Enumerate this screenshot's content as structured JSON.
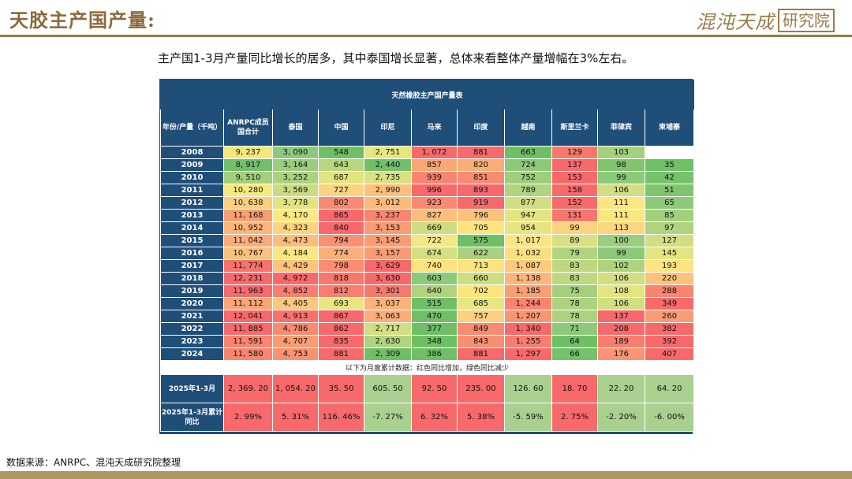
{
  "header": {
    "title": "天胶主产国产量:",
    "logo_main": "混沌天成",
    "logo_sub": "研究院"
  },
  "subtitle": "主产国1-3月产量同比增长的居多，其中泰国增长显著，总体来看整体产量增幅在3%左右。",
  "table": {
    "title": "天然橡胶主产国产量表",
    "corner_header": "年份/产量（千吨）",
    "columns": [
      "ANRPC成员国合计",
      "泰国",
      "中国",
      "印尼",
      "马来",
      "印度",
      "越南",
      "斯里兰卡",
      "菲律宾",
      "柬埔寨"
    ],
    "rows": [
      {
        "year": "2008",
        "cells": [
          {
            "v": "9, 237",
            "c": "#f5e77a"
          },
          {
            "v": "3, 090",
            "c": "#8dc97a"
          },
          {
            "v": "548",
            "c": "#6fbf67"
          },
          {
            "v": "2, 751",
            "c": "#e7e77e"
          },
          {
            "v": "1, 072",
            "c": "#f8696b"
          },
          {
            "v": "881",
            "c": "#f8696b"
          },
          {
            "v": "663",
            "c": "#6fbf67"
          },
          {
            "v": "129",
            "c": "#f8796c"
          },
          {
            "v": "103",
            "c": "#a4d07f"
          },
          {
            "v": "",
            "c": "#ffffff"
          }
        ]
      },
      {
        "year": "2009",
        "cells": [
          {
            "v": "8, 917",
            "c": "#70c06a"
          },
          {
            "v": "3, 164",
            "c": "#9acd7d"
          },
          {
            "v": "643",
            "c": "#b8d680"
          },
          {
            "v": "2, 440",
            "c": "#70c06a"
          },
          {
            "v": "857",
            "c": "#f9a775"
          },
          {
            "v": "820",
            "c": "#f9ae78"
          },
          {
            "v": "724",
            "c": "#8dc97a"
          },
          {
            "v": "137",
            "c": "#f8696b"
          },
          {
            "v": "98",
            "c": "#80c46e"
          },
          {
            "v": "35",
            "c": "#6fbf67"
          }
        ]
      },
      {
        "year": "2010",
        "cells": [
          {
            "v": "9, 510",
            "c": "#a3cf7e"
          },
          {
            "v": "3, 252",
            "c": "#abd27f"
          },
          {
            "v": "687",
            "c": "#e2e480"
          },
          {
            "v": "2, 735",
            "c": "#d8e081"
          },
          {
            "v": "939",
            "c": "#f98470"
          },
          {
            "v": "851",
            "c": "#f98b71"
          },
          {
            "v": "752",
            "c": "#9ecd7d"
          },
          {
            "v": "153",
            "c": "#f8696b"
          },
          {
            "v": "99",
            "c": "#8dc97a"
          },
          {
            "v": "42",
            "c": "#79c26d"
          }
        ]
      },
      {
        "year": "2011",
        "cells": [
          {
            "v": "10, 280",
            "c": "#f8e97d"
          },
          {
            "v": "3, 569",
            "c": "#c9dc81"
          },
          {
            "v": "727",
            "c": "#fbd37f"
          },
          {
            "v": "2, 990",
            "c": "#fdc07c"
          },
          {
            "v": "996",
            "c": "#f8696b"
          },
          {
            "v": "893",
            "c": "#f8696b"
          },
          {
            "v": "789",
            "c": "#b1d47f"
          },
          {
            "v": "158",
            "c": "#f8696b"
          },
          {
            "v": "106",
            "c": "#d1de81"
          },
          {
            "v": "51",
            "c": "#80c46e"
          }
        ]
      },
      {
        "year": "2012",
        "cells": [
          {
            "v": "10, 638",
            "c": "#fcce7e"
          },
          {
            "v": "3, 778",
            "c": "#e1e480"
          },
          {
            "v": "802",
            "c": "#f98a71"
          },
          {
            "v": "3, 012",
            "c": "#fcb97a"
          },
          {
            "v": "923",
            "c": "#f98a71"
          },
          {
            "v": "919",
            "c": "#f8696b"
          },
          {
            "v": "877",
            "c": "#d2de81"
          },
          {
            "v": "152",
            "c": "#f8696b"
          },
          {
            "v": "111",
            "c": "#fbe682"
          },
          {
            "v": "65",
            "c": "#8dc97a"
          }
        ]
      },
      {
        "year": "2013",
        "cells": [
          {
            "v": "11, 168",
            "c": "#f99d73"
          },
          {
            "v": "4, 170",
            "c": "#fbe882"
          },
          {
            "v": "865",
            "c": "#f8696b"
          },
          {
            "v": "3, 237",
            "c": "#f98470"
          },
          {
            "v": "827",
            "c": "#fcbf7b"
          },
          {
            "v": "796",
            "c": "#fcc27c"
          },
          {
            "v": "947",
            "c": "#e4e582"
          },
          {
            "v": "131",
            "c": "#f8766d"
          },
          {
            "v": "111",
            "c": "#fbe682"
          },
          {
            "v": "85",
            "c": "#a3cf7e"
          }
        ]
      },
      {
        "year": "2014",
        "cells": [
          {
            "v": "10, 952",
            "c": "#fcb57a"
          },
          {
            "v": "4, 323",
            "c": "#fdd47f"
          },
          {
            "v": "840",
            "c": "#f8696b"
          },
          {
            "v": "3, 153",
            "c": "#fb9b73"
          },
          {
            "v": "669",
            "c": "#cfdd81"
          },
          {
            "v": "705",
            "c": "#fde47f"
          },
          {
            "v": "954",
            "c": "#e6e582"
          },
          {
            "v": "99",
            "c": "#fbd27f"
          },
          {
            "v": "113",
            "c": "#fcd680"
          },
          {
            "v": "97",
            "c": "#b0d37f"
          }
        ]
      },
      {
        "year": "2015",
        "cells": [
          {
            "v": "11, 042",
            "c": "#fbac77"
          },
          {
            "v": "4, 473",
            "c": "#fcbd7b"
          },
          {
            "v": "794",
            "c": "#fa9072"
          },
          {
            "v": "3, 145",
            "c": "#fb9c73"
          },
          {
            "v": "722",
            "c": "#f2e881"
          },
          {
            "v": "575",
            "c": "#6fbf67"
          },
          {
            "v": "1, 017",
            "c": "#fbe482"
          },
          {
            "v": "89",
            "c": "#d8e081"
          },
          {
            "v": "100",
            "c": "#9acd7d"
          },
          {
            "v": "127",
            "c": "#d2de81"
          }
        ]
      },
      {
        "year": "2016",
        "cells": [
          {
            "v": "10, 767",
            "c": "#fcc27c"
          },
          {
            "v": "4, 184",
            "c": "#fbe682"
          },
          {
            "v": "774",
            "c": "#fbae78"
          },
          {
            "v": "3, 157",
            "c": "#fb9a73"
          },
          {
            "v": "674",
            "c": "#d4df81"
          },
          {
            "v": "622",
            "c": "#a8d27f"
          },
          {
            "v": "1, 032",
            "c": "#fbdf80"
          },
          {
            "v": "79",
            "c": "#b1d47f"
          },
          {
            "v": "99",
            "c": "#8dc97a"
          },
          {
            "v": "145",
            "c": "#e4e582"
          }
        ]
      },
      {
        "year": "2017",
        "cells": [
          {
            "v": "11, 774",
            "c": "#f8726c"
          },
          {
            "v": "4, 429",
            "c": "#fcc47c"
          },
          {
            "v": "798",
            "c": "#fa8c71"
          },
          {
            "v": "3, 629",
            "c": "#f8696b"
          },
          {
            "v": "740",
            "c": "#fbe37f"
          },
          {
            "v": "713",
            "c": "#fde27f"
          },
          {
            "v": "1, 087",
            "c": "#fcca7e"
          },
          {
            "v": "83",
            "c": "#bed880"
          },
          {
            "v": "102",
            "c": "#aed37f"
          },
          {
            "v": "193",
            "c": "#fde482"
          }
        ]
      },
      {
        "year": "2018",
        "cells": [
          {
            "v": "12, 231",
            "c": "#f8696b"
          },
          {
            "v": "4, 972",
            "c": "#f8696b"
          },
          {
            "v": "818",
            "c": "#f8786d"
          },
          {
            "v": "3, 630",
            "c": "#f8696b"
          },
          {
            "v": "603",
            "c": "#8dc97a"
          },
          {
            "v": "660",
            "c": "#cddd81"
          },
          {
            "v": "1, 138",
            "c": "#fcb57a"
          },
          {
            "v": "83",
            "c": "#bed880"
          },
          {
            "v": "106",
            "c": "#d1de81"
          },
          {
            "v": "220",
            "c": "#fcc27c"
          }
        ]
      },
      {
        "year": "2019",
        "cells": [
          {
            "v": "11, 963",
            "c": "#f8696b"
          },
          {
            "v": "4, 852",
            "c": "#f97e6f"
          },
          {
            "v": "812",
            "c": "#f97e6f"
          },
          {
            "v": "3, 301",
            "c": "#f8796c"
          },
          {
            "v": "640",
            "c": "#b0d37f"
          },
          {
            "v": "702",
            "c": "#fde47f"
          },
          {
            "v": "1, 185",
            "c": "#fa9f74"
          },
          {
            "v": "75",
            "c": "#a3cf7e"
          },
          {
            "v": "108",
            "c": "#e4e582"
          },
          {
            "v": "288",
            "c": "#f98470"
          }
        ]
      },
      {
        "year": "2020",
        "cells": [
          {
            "v": "11, 112",
            "c": "#fba577"
          },
          {
            "v": "4, 405",
            "c": "#fcc87d"
          },
          {
            "v": "693",
            "c": "#e8e682"
          },
          {
            "v": "3, 037",
            "c": "#fcb379"
          },
          {
            "v": "515",
            "c": "#6fbf67"
          },
          {
            "v": "685",
            "c": "#e7e682"
          },
          {
            "v": "1, 244",
            "c": "#f98470"
          },
          {
            "v": "78",
            "c": "#acd27f"
          },
          {
            "v": "106",
            "c": "#d1de81"
          },
          {
            "v": "349",
            "c": "#f8696b"
          }
        ]
      },
      {
        "year": "2021",
        "cells": [
          {
            "v": "12, 041",
            "c": "#f8696b"
          },
          {
            "v": "4, 913",
            "c": "#f8726c"
          },
          {
            "v": "867",
            "c": "#f8696b"
          },
          {
            "v": "3, 063",
            "c": "#fcad78"
          },
          {
            "v": "470",
            "c": "#6fbf67"
          },
          {
            "v": "757",
            "c": "#fcd07e"
          },
          {
            "v": "1, 207",
            "c": "#f99573"
          },
          {
            "v": "78",
            "c": "#acd27f"
          },
          {
            "v": "137",
            "c": "#f8696b"
          },
          {
            "v": "260",
            "c": "#fa9c73"
          }
        ]
      },
      {
        "year": "2022",
        "cells": [
          {
            "v": "11, 885",
            "c": "#f8696b"
          },
          {
            "v": "4, 786",
            "c": "#f98b71"
          },
          {
            "v": "862",
            "c": "#f8696b"
          },
          {
            "v": "2, 717",
            "c": "#d2de81"
          },
          {
            "v": "377",
            "c": "#6fbf67"
          },
          {
            "v": "849",
            "c": "#f98b71"
          },
          {
            "v": "1, 340",
            "c": "#f8696b"
          },
          {
            "v": "71",
            "c": "#8dc97a"
          },
          {
            "v": "208",
            "c": "#f8696b"
          },
          {
            "v": "382",
            "c": "#f8696b"
          }
        ]
      },
      {
        "year": "2023",
        "cells": [
          {
            "v": "11, 591",
            "c": "#f98470"
          },
          {
            "v": "4, 707",
            "c": "#fa9c73"
          },
          {
            "v": "835",
            "c": "#f8696b"
          },
          {
            "v": "2, 630",
            "c": "#b0d37f"
          },
          {
            "v": "348",
            "c": "#6fbf67"
          },
          {
            "v": "843",
            "c": "#f98f72"
          },
          {
            "v": "1, 255",
            "c": "#f97e6f"
          },
          {
            "v": "64",
            "c": "#6fbf67"
          },
          {
            "v": "189",
            "c": "#f97e6f"
          },
          {
            "v": "392",
            "c": "#f8696b"
          }
        ]
      },
      {
        "year": "2024",
        "cells": [
          {
            "v": "11, 580",
            "c": "#f98570"
          },
          {
            "v": "4, 753",
            "c": "#fa9272"
          },
          {
            "v": "881",
            "c": "#f8696b"
          },
          {
            "v": "2, 309",
            "c": "#6fbf67"
          },
          {
            "v": "386",
            "c": "#6fbf67"
          },
          {
            "v": "881",
            "c": "#f8696b"
          },
          {
            "v": "1, 297",
            "c": "#f8696b"
          },
          {
            "v": "66",
            "c": "#76c16c"
          },
          {
            "v": "176",
            "c": "#fa9472"
          },
          {
            "v": "407",
            "c": "#f8696b"
          }
        ]
      }
    ],
    "note": "以下为月度累计数据：红色同比增加，绿色同比减少",
    "sum_row": {
      "label": "2025年1-3月",
      "cells": [
        {
          "v": "2, 369. 20",
          "c": "#f8696b"
        },
        {
          "v": "1, 054. 20",
          "c": "#f8696b"
        },
        {
          "v": "35. 50",
          "c": "#f8696b"
        },
        {
          "v": "605. 50",
          "c": "#a9d08e"
        },
        {
          "v": "92. 50",
          "c": "#f8696b"
        },
        {
          "v": "235. 00",
          "c": "#f8696b"
        },
        {
          "v": "126. 60",
          "c": "#a9d08e"
        },
        {
          "v": "18. 70",
          "c": "#f8696b"
        },
        {
          "v": "22. 20",
          "c": "#a9d08e"
        },
        {
          "v": "64. 20",
          "c": "#a9d08e"
        }
      ]
    },
    "pct_row": {
      "label": "2025年1-3月累计同比",
      "cells": [
        {
          "v": "2. 99%",
          "c": "#f8696b"
        },
        {
          "v": "5. 31%",
          "c": "#f8696b"
        },
        {
          "v": "116. 46%",
          "c": "#f8696b"
        },
        {
          "v": "-7. 27%",
          "c": "#a9d08e"
        },
        {
          "v": "6. 32%",
          "c": "#f8696b"
        },
        {
          "v": "5. 38%",
          "c": "#f8696b"
        },
        {
          "v": "-5. 59%",
          "c": "#a9d08e"
        },
        {
          "v": "2. 75%",
          "c": "#f8696b"
        },
        {
          "v": "-2. 20%",
          "c": "#a9d08e"
        },
        {
          "v": "-6. 00%",
          "c": "#a9d08e"
        }
      ]
    }
  },
  "source": "数据来源：ANRPC、混沌天成研究院整理"
}
